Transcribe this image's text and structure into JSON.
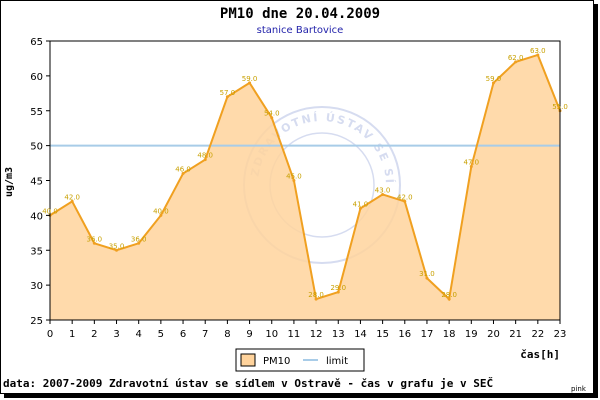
{
  "chart_data": {
    "type": "area",
    "title": "PM10 dne 20.04.2009",
    "subtitle": "stanice Bartovice",
    "xlabel": "čas[h]",
    "ylabel": "ug/m3",
    "x": [
      0,
      1,
      2,
      3,
      4,
      5,
      6,
      7,
      8,
      9,
      10,
      11,
      12,
      13,
      14,
      15,
      16,
      17,
      18,
      19,
      20,
      21,
      22,
      23
    ],
    "series": [
      {
        "name": "PM10",
        "values": [
          40,
          42,
          36,
          35,
          36,
          40,
          46,
          48,
          57,
          59,
          54,
          45,
          28,
          29,
          41,
          43,
          42,
          31,
          28,
          47,
          59,
          62,
          63,
          55
        ],
        "labels": [
          "40.0",
          "42.0",
          "36.0",
          "35.0",
          "36.0",
          "40.0",
          "46.0",
          "48.0",
          "57.0",
          "59.0",
          "54.0",
          "45.0",
          "28.0",
          "29.0",
          "41.0",
          "43.0",
          "42.0",
          "31.0",
          "28.0",
          "47.0",
          "59.0",
          "62.0",
          "63.0",
          "55.0"
        ],
        "line_color": "#f0a020",
        "fill_color": "#ffd39c",
        "label_color": "#c8a000"
      },
      {
        "name": "limit",
        "value": 50,
        "line_color": "#a8cce8"
      }
    ],
    "yticks": [
      "25",
      "30",
      "35",
      "40",
      "45",
      "50",
      "55",
      "60",
      "65"
    ],
    "xticks": [
      "0",
      "1",
      "2",
      "3",
      "4",
      "5",
      "6",
      "7",
      "8",
      "9",
      "10",
      "11",
      "12",
      "13",
      "14",
      "15",
      "16",
      "17",
      "18",
      "19",
      "20",
      "21",
      "22",
      "23"
    ],
    "ylim": [
      25,
      65
    ],
    "xlim": [
      0,
      23
    ],
    "grid": false,
    "legend": "bottom-center",
    "watermark": "ZDRAVOTNÍ ÚSTAV SE SÍDLEM V OSTRAVĚ"
  },
  "footer": "data: 2007-2009 Zdravotní ústav se sídlem v Ostravě - čas v grafu je v SEČ",
  "credit": "pink",
  "colors": {
    "title": "#000000",
    "subtitle": "#2222aa",
    "axis": "#000000"
  }
}
